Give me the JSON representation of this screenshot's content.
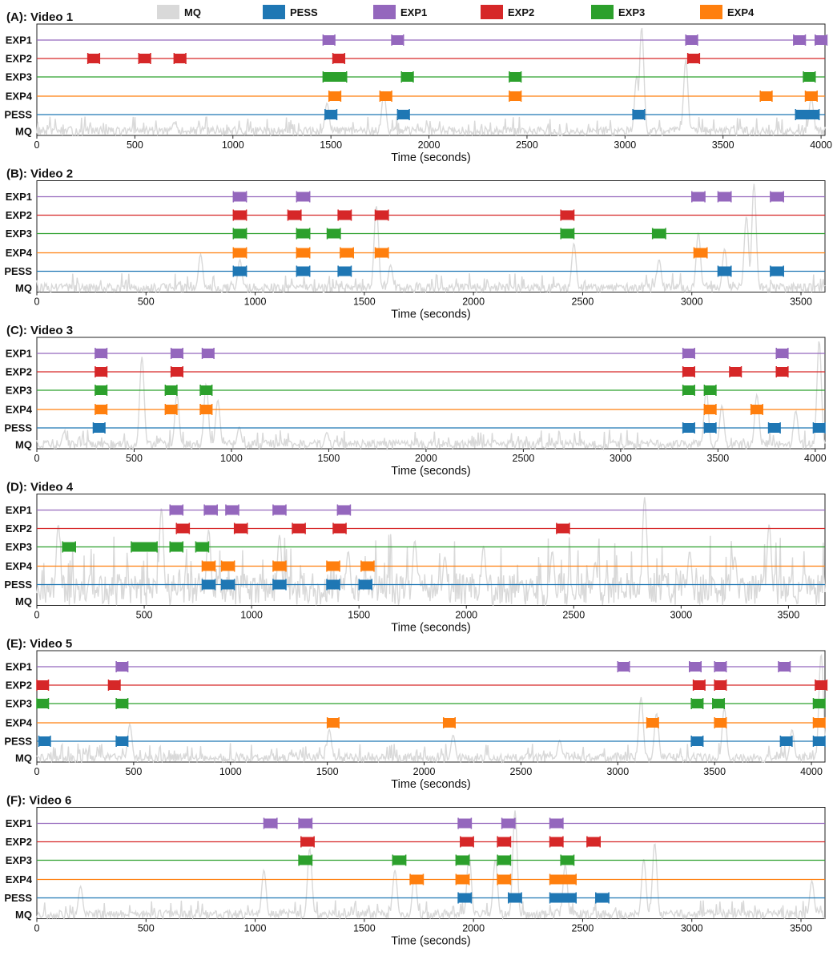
{
  "colors": {
    "MQ": "#d9d9d9",
    "PESS": "#1f77b4",
    "EXP1": "#9467bd",
    "EXP2": "#d62728",
    "EXP3": "#2ca02c",
    "EXP4": "#ff7f0e"
  },
  "legend": [
    {
      "key": "MQ",
      "label": "MQ"
    },
    {
      "key": "PESS",
      "label": "PESS"
    },
    {
      "key": "EXP1",
      "label": "EXP1"
    },
    {
      "key": "EXP2",
      "label": "EXP2"
    },
    {
      "key": "EXP3",
      "label": "EXP3"
    },
    {
      "key": "EXP4",
      "label": "EXP4"
    }
  ],
  "chart_data": [
    {
      "type": "timeline",
      "title": "(A): Video 1",
      "xlabel": "Time (seconds)",
      "xlim": [
        0,
        4020
      ],
      "xticks": [
        0,
        500,
        1000,
        1500,
        2000,
        2500,
        3000,
        3500,
        4000
      ],
      "rows": [
        "EXP1",
        "EXP2",
        "EXP3",
        "EXP4",
        "PESS",
        "MQ"
      ],
      "segments": {
        "EXP1": [
          [
            1460,
            1520
          ],
          [
            1810,
            1870
          ],
          [
            3310,
            3370
          ],
          [
            3860,
            3920
          ],
          [
            3970,
            4030
          ]
        ],
        "EXP2": [
          [
            260,
            320
          ],
          [
            520,
            580
          ],
          [
            700,
            760
          ],
          [
            1510,
            1570
          ],
          [
            3320,
            3380
          ]
        ],
        "EXP3": [
          [
            1460,
            1580
          ],
          [
            1860,
            1920
          ],
          [
            2410,
            2470
          ],
          [
            3910,
            3970
          ]
        ],
        "EXP4": [
          [
            1490,
            1550
          ],
          [
            1750,
            1810
          ],
          [
            2410,
            2470
          ],
          [
            3690,
            3750
          ],
          [
            3920,
            3980
          ]
        ],
        "PESS": [
          [
            1470,
            1530
          ],
          [
            1840,
            1900
          ],
          [
            3040,
            3100
          ],
          [
            3870,
            3990
          ]
        ]
      },
      "mq_peaks": [
        [
          3085,
          1.0
        ],
        [
          3060,
          0.55
        ],
        [
          3310,
          0.7
        ],
        [
          1770,
          0.4
        ],
        [
          1480,
          0.3
        ],
        [
          3950,
          0.35
        ],
        [
          700,
          0.12
        ]
      ]
    },
    {
      "type": "timeline",
      "title": "(B): Video 2",
      "xlabel": "Time (seconds)",
      "xlim": [
        0,
        3610
      ],
      "xticks": [
        0,
        500,
        1000,
        1500,
        2000,
        2500,
        3000,
        3500
      ],
      "rows": [
        "EXP1",
        "EXP2",
        "EXP3",
        "EXP4",
        "PESS",
        "MQ"
      ],
      "segments": {
        "EXP1": [
          [
            900,
            960
          ],
          [
            1190,
            1250
          ],
          [
            3000,
            3060
          ],
          [
            3120,
            3180
          ],
          [
            3360,
            3420
          ]
        ],
        "EXP2": [
          [
            900,
            960
          ],
          [
            1150,
            1210
          ],
          [
            1380,
            1440
          ],
          [
            1550,
            1610
          ],
          [
            2400,
            2460
          ]
        ],
        "EXP3": [
          [
            900,
            960
          ],
          [
            1190,
            1250
          ],
          [
            1330,
            1390
          ],
          [
            2400,
            2460
          ],
          [
            2820,
            2880
          ]
        ],
        "EXP4": [
          [
            900,
            960
          ],
          [
            1190,
            1250
          ],
          [
            1390,
            1450
          ],
          [
            1550,
            1610
          ],
          [
            3010,
            3070
          ]
        ],
        "PESS": [
          [
            900,
            960
          ],
          [
            1190,
            1250
          ],
          [
            1380,
            1440
          ],
          [
            3120,
            3180
          ],
          [
            3360,
            3420
          ]
        ]
      },
      "mq_peaks": [
        [
          3285,
          1.0
        ],
        [
          1555,
          0.8
        ],
        [
          2460,
          0.45
        ],
        [
          3250,
          0.7
        ],
        [
          3030,
          0.55
        ],
        [
          3150,
          0.4
        ],
        [
          2850,
          0.3
        ],
        [
          750,
          0.35
        ],
        [
          1620,
          0.25
        ],
        [
          930,
          0.3
        ]
      ]
    },
    {
      "type": "timeline",
      "title": "(C): Video 3",
      "xlabel": "Time (seconds)",
      "xlim": [
        0,
        4050
      ],
      "xticks": [
        0,
        500,
        1000,
        1500,
        2000,
        2500,
        3000,
        3500,
        4000
      ],
      "rows": [
        "EXP1",
        "EXP2",
        "EXP3",
        "EXP4",
        "PESS",
        "MQ"
      ],
      "segments": {
        "EXP1": [
          [
            300,
            360
          ],
          [
            690,
            750
          ],
          [
            850,
            910
          ],
          [
            3320,
            3380
          ],
          [
            3800,
            3860
          ]
        ],
        "EXP2": [
          [
            300,
            360
          ],
          [
            690,
            750
          ],
          [
            3320,
            3380
          ],
          [
            3560,
            3620
          ],
          [
            3800,
            3860
          ]
        ],
        "EXP3": [
          [
            300,
            360
          ],
          [
            660,
            720
          ],
          [
            840,
            900
          ],
          [
            3320,
            3380
          ],
          [
            3430,
            3490
          ]
        ],
        "EXP4": [
          [
            300,
            360
          ],
          [
            660,
            720
          ],
          [
            840,
            900
          ],
          [
            3430,
            3490
          ],
          [
            3670,
            3730
          ]
        ],
        "PESS": [
          [
            290,
            350
          ],
          [
            3320,
            3380
          ],
          [
            3430,
            3490
          ],
          [
            3760,
            3820
          ],
          [
            3990,
            4050
          ]
        ]
      },
      "mq_peaks": [
        [
          540,
          0.85
        ],
        [
          4020,
          1.0
        ],
        [
          870,
          0.6
        ],
        [
          930,
          0.45
        ],
        [
          720,
          0.5
        ],
        [
          3440,
          0.55
        ],
        [
          3520,
          0.4
        ],
        [
          3700,
          0.5
        ],
        [
          3900,
          0.35
        ],
        [
          1040,
          0.2
        ],
        [
          140,
          0.15
        ],
        [
          1490,
          0.15
        ]
      ]
    },
    {
      "type": "timeline",
      "title": "(D): Video 4",
      "xlabel": "Time (seconds)",
      "xlim": [
        0,
        3670
      ],
      "xticks": [
        0,
        500,
        1000,
        1500,
        2000,
        2500,
        3000,
        3500
      ],
      "rows": [
        "EXP1",
        "EXP2",
        "EXP3",
        "EXP4",
        "PESS",
        "MQ"
      ],
      "segments": {
        "EXP1": [
          [
            620,
            680
          ],
          [
            780,
            840
          ],
          [
            880,
            940
          ],
          [
            1100,
            1160
          ],
          [
            1400,
            1460
          ]
        ],
        "EXP2": [
          [
            650,
            710
          ],
          [
            920,
            980
          ],
          [
            1190,
            1250
          ],
          [
            1380,
            1440
          ],
          [
            2420,
            2480
          ]
        ],
        "EXP3": [
          [
            120,
            180
          ],
          [
            440,
            560
          ],
          [
            620,
            680
          ],
          [
            740,
            800
          ]
        ],
        "EXP4": [
          [
            770,
            830
          ],
          [
            860,
            920
          ],
          [
            1100,
            1160
          ],
          [
            1350,
            1410
          ],
          [
            1510,
            1570
          ]
        ],
        "PESS": [
          [
            770,
            830
          ],
          [
            860,
            920
          ],
          [
            1100,
            1160
          ],
          [
            1350,
            1410
          ],
          [
            1500,
            1560
          ]
        ]
      },
      "mq_peaks": [
        [
          2830,
          1.0
        ],
        [
          3410,
          0.75
        ],
        [
          580,
          0.9
        ],
        [
          100,
          0.75
        ],
        [
          800,
          0.7
        ],
        [
          1130,
          0.65
        ],
        [
          1760,
          0.6
        ],
        [
          2080,
          0.55
        ],
        [
          2400,
          0.5
        ],
        [
          3040,
          0.5
        ],
        [
          3250,
          0.45
        ],
        [
          1450,
          0.5
        ],
        [
          1900,
          0.45
        ],
        [
          2600,
          0.4
        ]
      ],
      "mq_noise": 0.3
    },
    {
      "type": "timeline",
      "title": "(E): Video 5",
      "xlabel": "Time (seconds)",
      "xlim": [
        0,
        4070
      ],
      "xticks": [
        0,
        500,
        1000,
        1500,
        2000,
        2500,
        3000,
        3500,
        4000
      ],
      "rows": [
        "EXP1",
        "EXP2",
        "EXP3",
        "EXP4",
        "PESS",
        "MQ"
      ],
      "segments": {
        "EXP1": [
          [
            410,
            470
          ],
          [
            3000,
            3060
          ],
          [
            3370,
            3430
          ],
          [
            3500,
            3560
          ],
          [
            3830,
            3890
          ]
        ],
        "EXP2": [
          [
            0,
            60
          ],
          [
            370,
            430
          ],
          [
            3390,
            3450
          ],
          [
            3500,
            3560
          ],
          [
            4020,
            4080
          ]
        ],
        "EXP3": [
          [
            0,
            60
          ],
          [
            410,
            470
          ],
          [
            3380,
            3440
          ],
          [
            3490,
            3550
          ],
          [
            4010,
            4070
          ]
        ],
        "EXP4": [
          [
            1500,
            1560
          ],
          [
            2100,
            2160
          ],
          [
            3150,
            3210
          ],
          [
            3500,
            3560
          ],
          [
            4010,
            4070
          ]
        ],
        "PESS": [
          [
            10,
            70
          ],
          [
            410,
            470
          ],
          [
            3380,
            3440
          ],
          [
            3840,
            3900
          ],
          [
            4010,
            4070
          ]
        ]
      },
      "mq_peaks": [
        [
          4050,
          1.0
        ],
        [
          3120,
          0.6
        ],
        [
          3200,
          0.45
        ],
        [
          3550,
          0.5
        ],
        [
          480,
          0.35
        ],
        [
          1510,
          0.3
        ],
        [
          2150,
          0.25
        ],
        [
          2700,
          0.2
        ],
        [
          3900,
          0.3
        ]
      ]
    },
    {
      "type": "timeline",
      "title": "(F): Video 6",
      "xlabel": "Time (seconds)",
      "xlim": [
        0,
        3610
      ],
      "xticks": [
        0,
        500,
        1000,
        1500,
        2000,
        2500,
        3000,
        3500
      ],
      "rows": [
        "EXP1",
        "EXP2",
        "EXP3",
        "EXP4",
        "PESS",
        "MQ"
      ],
      "segments": {
        "EXP1": [
          [
            1040,
            1100
          ],
          [
            1200,
            1260
          ],
          [
            1930,
            1990
          ],
          [
            2130,
            2190
          ],
          [
            2350,
            2410
          ]
        ],
        "EXP2": [
          [
            1210,
            1270
          ],
          [
            1940,
            2000
          ],
          [
            2110,
            2170
          ],
          [
            2350,
            2410
          ],
          [
            2520,
            2580
          ]
        ],
        "EXP3": [
          [
            1200,
            1260
          ],
          [
            1630,
            1690
          ],
          [
            1920,
            1980
          ],
          [
            2110,
            2170
          ],
          [
            2400,
            2460
          ]
        ],
        "EXP4": [
          [
            1710,
            1770
          ],
          [
            1920,
            1980
          ],
          [
            2110,
            2170
          ],
          [
            2350,
            2470
          ]
        ],
        "PESS": [
          [
            1930,
            1990
          ],
          [
            2160,
            2220
          ],
          [
            2350,
            2470
          ],
          [
            2560,
            2620
          ]
        ]
      },
      "mq_peaks": [
        [
          2190,
          1.0
        ],
        [
          1250,
          0.65
        ],
        [
          2830,
          0.7
        ],
        [
          2780,
          0.55
        ],
        [
          1980,
          0.6
        ],
        [
          2100,
          0.55
        ],
        [
          1640,
          0.45
        ],
        [
          1730,
          0.4
        ],
        [
          3550,
          0.35
        ],
        [
          1040,
          0.45
        ],
        [
          200,
          0.3
        ],
        [
          2420,
          0.5
        ]
      ]
    }
  ]
}
